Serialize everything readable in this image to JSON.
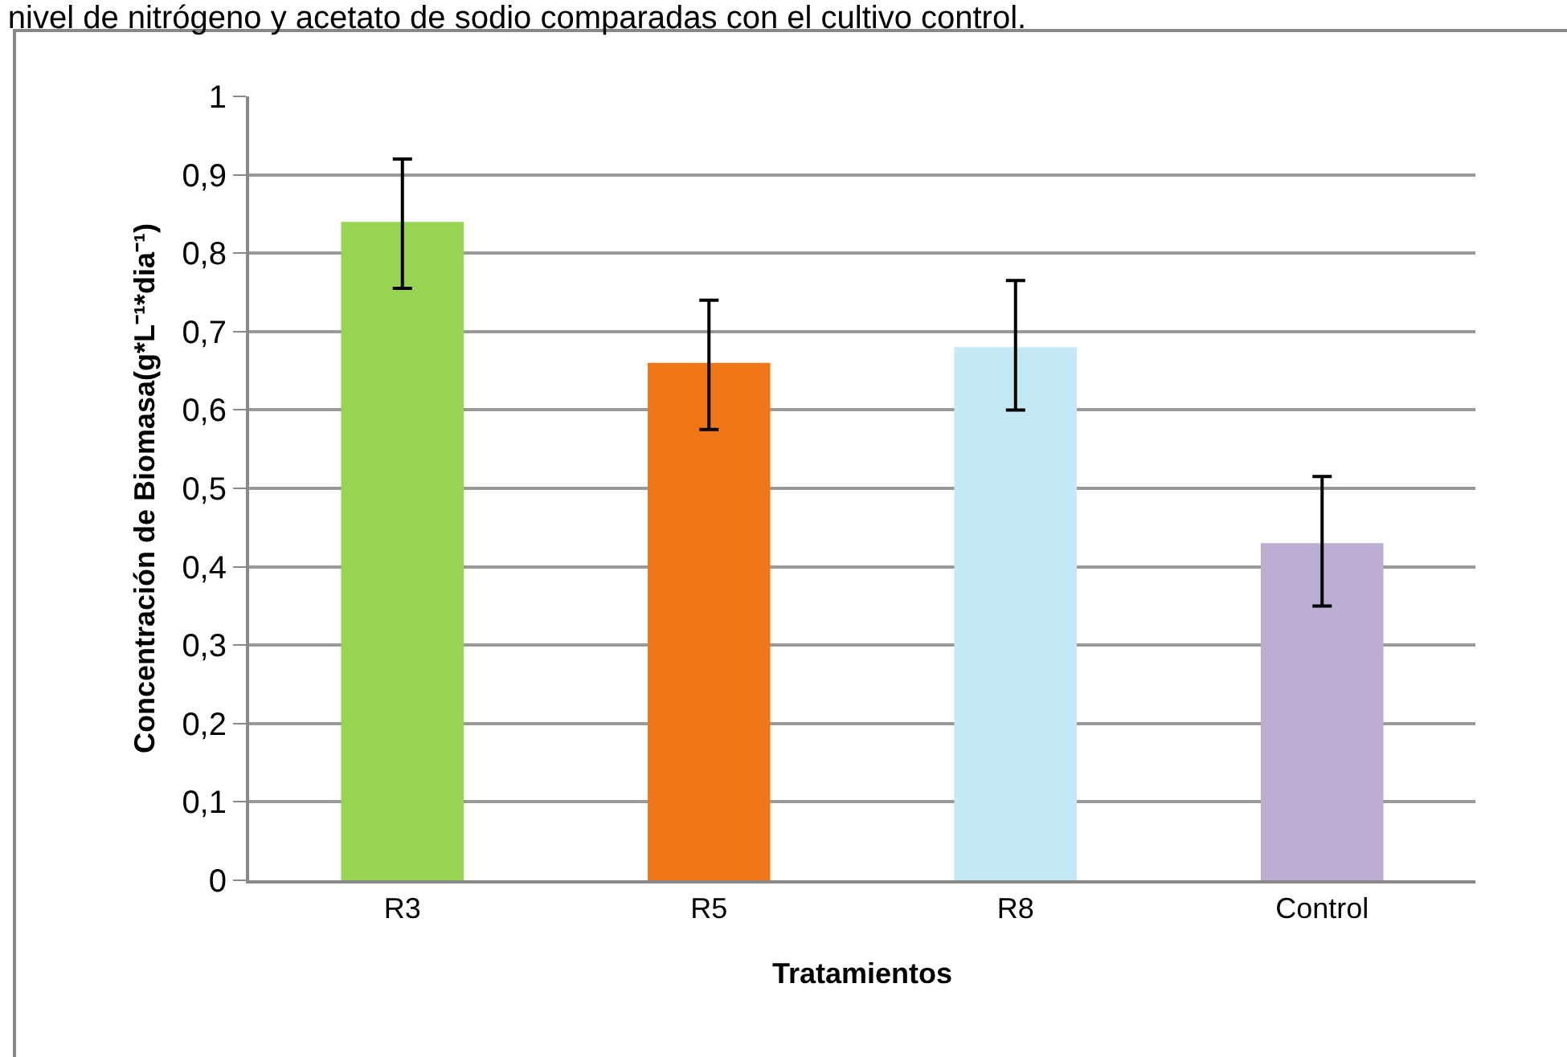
{
  "chart_data": {
    "type": "bar",
    "title": "nivel de nitrógeno y acetato de sodio comparadas con el cultivo control.",
    "xlabel": "Tratamientos",
    "ylabel": "Concentración de Biomasa(g*L⁻¹*dia⁻¹)",
    "categories": [
      "R3",
      "R5",
      "R8",
      "Control"
    ],
    "values": [
      0.84,
      0.66,
      0.68,
      0.43
    ],
    "errors": [
      [
        0.755,
        0.92
      ],
      [
        0.575,
        0.74
      ],
      [
        0.6,
        0.765
      ],
      [
        0.35,
        0.515
      ]
    ],
    "colors": [
      "#96d452",
      "#f07717",
      "#c3eaf4",
      "#bcadd2"
    ],
    "ylim": [
      0,
      1
    ],
    "yticks": [
      0,
      {
        "value": 0.1,
        "label": "0,1"
      },
      {
        "value": 0.2,
        "label": "0,2"
      },
      {
        "value": 0.3,
        "label": "0,3"
      },
      {
        "value": 0.4,
        "label": "0,4"
      },
      {
        "value": 0.5,
        "label": "0,5"
      },
      {
        "value": 0.6,
        "label": "0,6"
      },
      {
        "value": 0.7,
        "label": "0,7"
      },
      {
        "value": 0.8,
        "label": "0,8"
      },
      {
        "value": 0.9,
        "label": "0,9"
      },
      1
    ],
    "grid": "y"
  }
}
